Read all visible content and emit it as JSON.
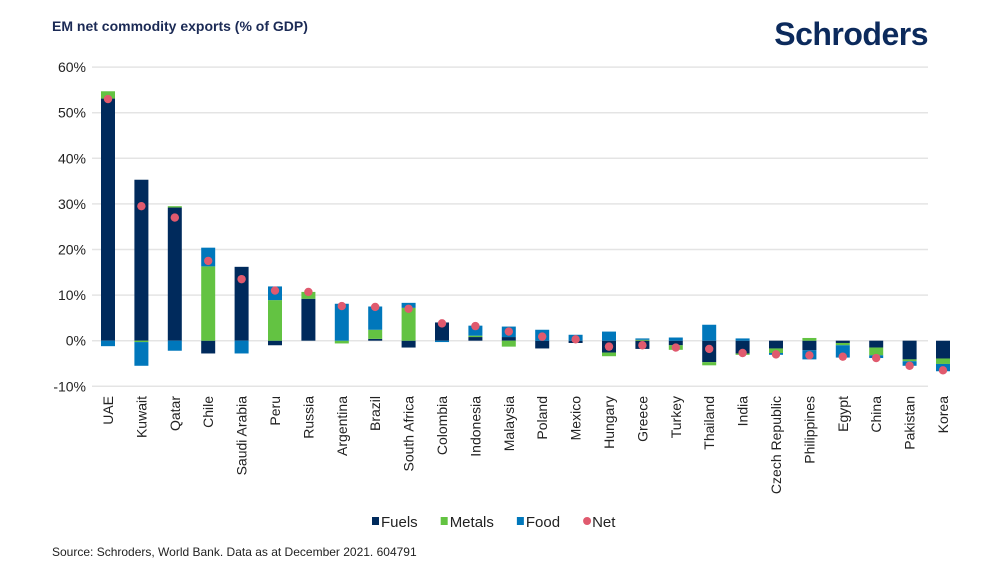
{
  "chart_data": {
    "type": "bar",
    "stacked": true,
    "title": "EM net commodity exports (% of GDP)",
    "xlabel": "",
    "ylabel": "",
    "ylim": [
      -10,
      60
    ],
    "yticks": [
      "-10%",
      "0%",
      "10%",
      "20%",
      "30%",
      "40%",
      "50%",
      "60%"
    ],
    "ytick_values": [
      -10,
      0,
      10,
      20,
      30,
      40,
      50,
      60
    ],
    "grid": true,
    "legend_position": "bottom",
    "categories": [
      "UAE",
      "Kuwait",
      "Qatar",
      "Chile",
      "Saudi Arabia",
      "Peru",
      "Russia",
      "Argentina",
      "Brazil",
      "South Africa",
      "Colombia",
      "Indonesia",
      "Malaysia",
      "Poland",
      "Mexico",
      "Hungary",
      "Greece",
      "Turkey",
      "Thailand",
      "India",
      "Czech Republic",
      "Philippines",
      "Egypt",
      "China",
      "Pakistan",
      "Korea"
    ],
    "series": [
      {
        "name": "Fuels",
        "type": "bar",
        "color": "#002a5c",
        "values": [
          53.1,
          35.3,
          29.2,
          -2.8,
          16.2,
          -1.0,
          9.2,
          0,
          0.4,
          -1.5,
          4.0,
          0.8,
          0.8,
          -1.7,
          -0.5,
          -2.6,
          -1.8,
          -1.0,
          -4.7,
          -2.8,
          -1.7,
          -2.1,
          -0.5,
          -1.5,
          -4.1,
          -3.9
        ]
      },
      {
        "name": "Metals",
        "type": "bar",
        "color": "#63c342",
        "values": [
          1.6,
          -0.3,
          0.3,
          16.3,
          0,
          8.9,
          1.5,
          -0.6,
          2.0,
          7.2,
          0,
          0.3,
          -1.3,
          0,
          0,
          -0.8,
          0.2,
          -1.0,
          -0.7,
          -0.3,
          -1.0,
          0.6,
          -0.5,
          -1.7,
          -0.4,
          -1.2
        ]
      },
      {
        "name": "Food",
        "type": "bar",
        "color": "#0077bb",
        "values": [
          -1.2,
          -5.2,
          -2.2,
          4.1,
          -2.8,
          3.0,
          0,
          8.1,
          5.1,
          1.1,
          -0.3,
          2.2,
          2.3,
          2.4,
          1.3,
          2.0,
          0.3,
          0.7,
          3.5,
          0.5,
          -0.4,
          -2.0,
          -2.7,
          -0.6,
          -1.0,
          -1.6
        ]
      },
      {
        "name": "Net",
        "type": "scatter",
        "color": "#e05a6e",
        "values": [
          53.0,
          29.5,
          27.0,
          17.5,
          13.5,
          11.0,
          10.7,
          7.6,
          7.4,
          7.0,
          3.8,
          3.2,
          2.0,
          0.9,
          0.3,
          -1.3,
          -1.0,
          -1.5,
          -1.8,
          -2.7,
          -3.0,
          -3.2,
          -3.5,
          -3.8,
          -5.5,
          -6.5
        ]
      }
    ]
  },
  "logo": "Schroders",
  "source": "Source: Schroders, World Bank. Data as at December 2021. 604791"
}
